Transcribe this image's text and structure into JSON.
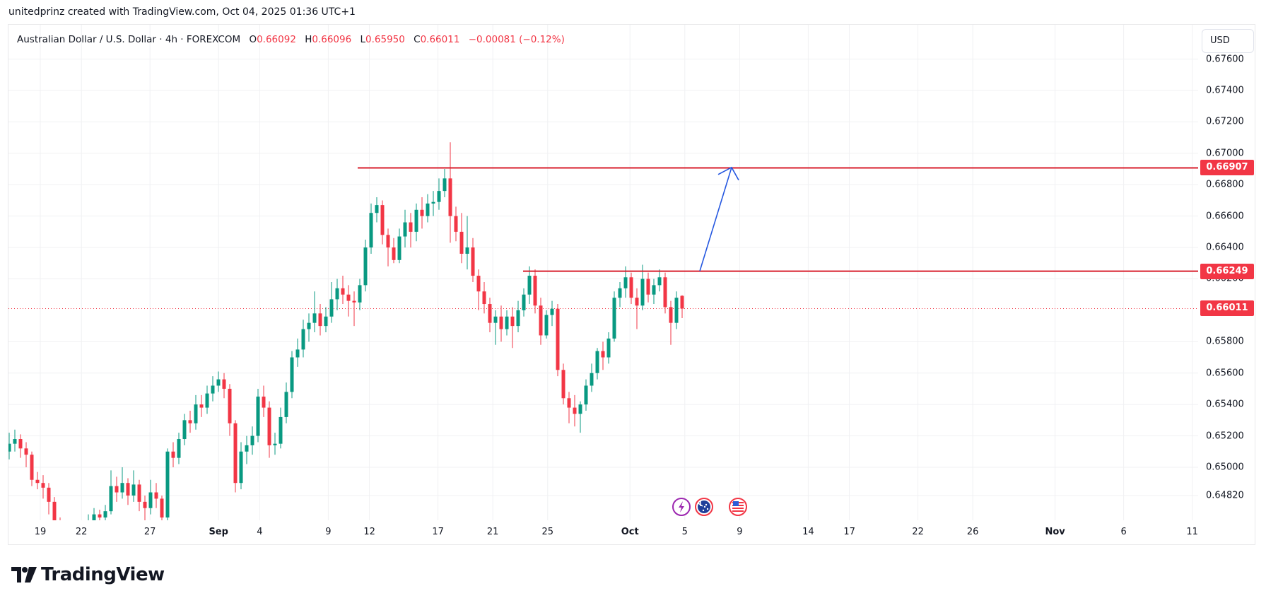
{
  "credit": "unitedprinz created with TradingView.com, Oct 04, 2025 01:36 UTC+1",
  "legend": {
    "symbol": "Australian Dollar / U.S. Dollar · 4h · FOREXCOM",
    "o_label": "O",
    "o": "0.66092",
    "h_label": "H",
    "h": "0.66096",
    "l_label": "L",
    "l": "0.65950",
    "c_label": "C",
    "c": "0.66011",
    "change": "−0.00081 (−0.12%)"
  },
  "currency_button": "USD",
  "logo_text": "TradingView",
  "colors": {
    "up": "#089981",
    "down": "#f23645",
    "level": "#d81f2d",
    "arrow": "#2457e0",
    "grid": "#f0f1f3"
  },
  "chart_data": {
    "type": "candlestick",
    "title": "Australian Dollar / U.S. Dollar · 4h · FOREXCOM",
    "ylim": [
      0.6473,
      0.6773
    ],
    "y_ticks": [
      "0.67600",
      "0.67400",
      "0.67200",
      "0.67000",
      "0.66800",
      "0.66600",
      "0.66400",
      "0.66200",
      "0.65800",
      "0.65600",
      "0.65400",
      "0.65200",
      "0.65000",
      "0.64820"
    ],
    "x_ticks": [
      {
        "label": "19",
        "bold": false,
        "day": 0
      },
      {
        "label": "22",
        "bold": false,
        "day": 3
      },
      {
        "label": "27",
        "bold": false,
        "day": 8
      },
      {
        "label": "Sep",
        "bold": true,
        "day": 13
      },
      {
        "label": "4",
        "bold": false,
        "day": 16
      },
      {
        "label": "9",
        "bold": false,
        "day": 21
      },
      {
        "label": "12",
        "bold": false,
        "day": 24
      },
      {
        "label": "17",
        "bold": false,
        "day": 29
      },
      {
        "label": "21",
        "bold": false,
        "day": 33
      },
      {
        "label": "25",
        "bold": false,
        "day": 37
      },
      {
        "label": "Oct",
        "bold": true,
        "day": 43
      },
      {
        "label": "5",
        "bold": false,
        "day": 47
      },
      {
        "label": "9",
        "bold": false,
        "day": 51
      },
      {
        "label": "14",
        "bold": false,
        "day": 56
      },
      {
        "label": "17",
        "bold": false,
        "day": 59
      },
      {
        "label": "22",
        "bold": false,
        "day": 64
      },
      {
        "label": "26",
        "bold": false,
        "day": 68
      },
      {
        "label": "Nov",
        "bold": true,
        "day": 74
      },
      {
        "label": "6",
        "bold": false,
        "day": 79
      },
      {
        "label": "11",
        "bold": false,
        "day": 84
      }
    ],
    "levels": [
      {
        "price": 0.66907,
        "label": "0.66907"
      },
      {
        "price": 0.66249,
        "label": "0.66249"
      }
    ],
    "last_price": {
      "price": 0.66011,
      "label": "0.66011"
    },
    "arrow": {
      "from_price": 0.6625,
      "to_price": 0.6691
    },
    "events": [
      "lightning-event",
      "australia-flag-event",
      "us-flag-event"
    ],
    "candles": [
      [
        0.651,
        0.6522,
        0.6505,
        0.6515
      ],
      [
        0.6515,
        0.6524,
        0.651,
        0.6518
      ],
      [
        0.6518,
        0.6521,
        0.6506,
        0.6512
      ],
      [
        0.6512,
        0.6516,
        0.65,
        0.6508
      ],
      [
        0.6508,
        0.651,
        0.6488,
        0.6492
      ],
      [
        0.6492,
        0.6497,
        0.6486,
        0.649
      ],
      [
        0.649,
        0.6495,
        0.648,
        0.6487
      ],
      [
        0.6487,
        0.649,
        0.647,
        0.6478
      ],
      [
        0.6478,
        0.6481,
        0.646,
        0.6465
      ],
      [
        0.6465,
        0.6468,
        0.6452,
        0.6458
      ],
      [
        0.6458,
        0.6462,
        0.645,
        0.6455
      ],
      [
        0.6455,
        0.6458,
        0.6446,
        0.6452
      ],
      [
        0.6452,
        0.6462,
        0.6448,
        0.6458
      ],
      [
        0.6458,
        0.6466,
        0.6454,
        0.6462
      ],
      [
        0.6462,
        0.647,
        0.6458,
        0.6466
      ],
      [
        0.6466,
        0.6474,
        0.6462,
        0.647
      ],
      [
        0.647,
        0.6473,
        0.6462,
        0.6468
      ],
      [
        0.6468,
        0.6476,
        0.6465,
        0.6472
      ],
      [
        0.6472,
        0.6498,
        0.647,
        0.6488
      ],
      [
        0.6488,
        0.6494,
        0.6478,
        0.6484
      ],
      [
        0.6484,
        0.65,
        0.648,
        0.649
      ],
      [
        0.649,
        0.6493,
        0.6476,
        0.6482
      ],
      [
        0.6482,
        0.6498,
        0.6478,
        0.6489
      ],
      [
        0.6489,
        0.6492,
        0.6472,
        0.6478
      ],
      [
        0.6478,
        0.6482,
        0.6466,
        0.6474
      ],
      [
        0.6474,
        0.6492,
        0.647,
        0.6484
      ],
      [
        0.6484,
        0.649,
        0.6474,
        0.648
      ],
      [
        0.648,
        0.6482,
        0.6462,
        0.6468
      ],
      [
        0.6468,
        0.6512,
        0.6466,
        0.651
      ],
      [
        0.651,
        0.6516,
        0.65,
        0.6506
      ],
      [
        0.6506,
        0.6522,
        0.6502,
        0.6518
      ],
      [
        0.6518,
        0.6534,
        0.6514,
        0.653
      ],
      [
        0.653,
        0.6536,
        0.6522,
        0.6528
      ],
      [
        0.6528,
        0.6546,
        0.6524,
        0.654
      ],
      [
        0.654,
        0.6546,
        0.6532,
        0.6538
      ],
      [
        0.6538,
        0.6552,
        0.6534,
        0.6547
      ],
      [
        0.6547,
        0.6558,
        0.6542,
        0.6552
      ],
      [
        0.6552,
        0.6561,
        0.6548,
        0.6556
      ],
      [
        0.6556,
        0.656,
        0.6544,
        0.655
      ],
      [
        0.655,
        0.6553,
        0.652,
        0.6528
      ],
      [
        0.6528,
        0.653,
        0.6484,
        0.649
      ],
      [
        0.649,
        0.6516,
        0.6486,
        0.651
      ],
      [
        0.651,
        0.652,
        0.6502,
        0.6514
      ],
      [
        0.6514,
        0.6526,
        0.6508,
        0.652
      ],
      [
        0.652,
        0.655,
        0.6516,
        0.6545
      ],
      [
        0.6545,
        0.6552,
        0.6532,
        0.6538
      ],
      [
        0.6538,
        0.6542,
        0.6506,
        0.6514
      ],
      [
        0.6514,
        0.6522,
        0.6508,
        0.6515
      ],
      [
        0.6515,
        0.6538,
        0.6512,
        0.6532
      ],
      [
        0.6532,
        0.6554,
        0.6528,
        0.6548
      ],
      [
        0.6548,
        0.6574,
        0.6544,
        0.657
      ],
      [
        0.657,
        0.6582,
        0.6564,
        0.6575
      ],
      [
        0.6575,
        0.6594,
        0.657,
        0.6588
      ],
      [
        0.6588,
        0.6598,
        0.658,
        0.6592
      ],
      [
        0.6592,
        0.6612,
        0.6586,
        0.6598
      ],
      [
        0.6598,
        0.6604,
        0.6584,
        0.659
      ],
      [
        0.659,
        0.6602,
        0.6586,
        0.6596
      ],
      [
        0.6596,
        0.6618,
        0.6592,
        0.6607
      ],
      [
        0.6607,
        0.662,
        0.66,
        0.6614
      ],
      [
        0.6614,
        0.6622,
        0.6604,
        0.661
      ],
      [
        0.661,
        0.6616,
        0.6596,
        0.6606
      ],
      [
        0.6606,
        0.6612,
        0.659,
        0.6605
      ],
      [
        0.6605,
        0.662,
        0.66,
        0.6616
      ],
      [
        0.6616,
        0.6645,
        0.6612,
        0.664
      ],
      [
        0.664,
        0.6668,
        0.6636,
        0.6662
      ],
      [
        0.6662,
        0.6672,
        0.6656,
        0.6667
      ],
      [
        0.6667,
        0.667,
        0.6642,
        0.6648
      ],
      [
        0.6648,
        0.6652,
        0.6628,
        0.664
      ],
      [
        0.664,
        0.6646,
        0.663,
        0.6632
      ],
      [
        0.6632,
        0.6652,
        0.663,
        0.6647
      ],
      [
        0.6647,
        0.6664,
        0.664,
        0.6656
      ],
      [
        0.6656,
        0.6662,
        0.664,
        0.665
      ],
      [
        0.665,
        0.6668,
        0.6644,
        0.6664
      ],
      [
        0.6664,
        0.6672,
        0.6652,
        0.666
      ],
      [
        0.666,
        0.6674,
        0.6656,
        0.6668
      ],
      [
        0.6668,
        0.6676,
        0.666,
        0.6669
      ],
      [
        0.6669,
        0.6684,
        0.6664,
        0.6676
      ],
      [
        0.6676,
        0.669,
        0.6672,
        0.6684
      ],
      [
        0.6684,
        0.6707,
        0.6643,
        0.666
      ],
      [
        0.666,
        0.6666,
        0.6644,
        0.665
      ],
      [
        0.665,
        0.6662,
        0.663,
        0.6636
      ],
      [
        0.6636,
        0.666,
        0.6626,
        0.664
      ],
      [
        0.664,
        0.6646,
        0.6618,
        0.6622
      ],
      [
        0.6622,
        0.6626,
        0.66,
        0.6612
      ],
      [
        0.6612,
        0.6618,
        0.6598,
        0.6604
      ],
      [
        0.6604,
        0.6608,
        0.6586,
        0.6592
      ],
      [
        0.6592,
        0.66,
        0.6578,
        0.6596
      ],
      [
        0.6596,
        0.6603,
        0.658,
        0.6588
      ],
      [
        0.6588,
        0.66,
        0.6584,
        0.6596
      ],
      [
        0.6596,
        0.6602,
        0.6576,
        0.659
      ],
      [
        0.659,
        0.6606,
        0.6586,
        0.66
      ],
      [
        0.66,
        0.6614,
        0.6596,
        0.661
      ],
      [
        0.661,
        0.6628,
        0.6604,
        0.6622
      ],
      [
        0.6622,
        0.6626,
        0.6598,
        0.6603
      ],
      [
        0.6603,
        0.6608,
        0.6578,
        0.6584
      ],
      [
        0.6584,
        0.66,
        0.6582,
        0.6597
      ],
      [
        0.6597,
        0.6606,
        0.659,
        0.6601
      ],
      [
        0.6601,
        0.6604,
        0.6558,
        0.6562
      ],
      [
        0.6562,
        0.6566,
        0.654,
        0.6544
      ],
      [
        0.6544,
        0.6548,
        0.6528,
        0.6538
      ],
      [
        0.6538,
        0.6546,
        0.6526,
        0.6534
      ],
      [
        0.6534,
        0.6542,
        0.6522,
        0.654
      ],
      [
        0.654,
        0.6556,
        0.6536,
        0.6552
      ],
      [
        0.6552,
        0.6566,
        0.6548,
        0.656
      ],
      [
        0.656,
        0.6576,
        0.6556,
        0.6574
      ],
      [
        0.6574,
        0.658,
        0.6562,
        0.657
      ],
      [
        0.657,
        0.6586,
        0.6566,
        0.6582
      ],
      [
        0.6582,
        0.6612,
        0.658,
        0.6608
      ],
      [
        0.6608,
        0.6618,
        0.6602,
        0.6614
      ],
      [
        0.6614,
        0.6628,
        0.6608,
        0.6621
      ],
      [
        0.6621,
        0.6624,
        0.6604,
        0.6608
      ],
      [
        0.6608,
        0.6614,
        0.6588,
        0.6603
      ],
      [
        0.6603,
        0.6629,
        0.66,
        0.662
      ],
      [
        0.662,
        0.6624,
        0.6605,
        0.661
      ],
      [
        0.661,
        0.662,
        0.6604,
        0.6616
      ],
      [
        0.6616,
        0.6626,
        0.6612,
        0.6621
      ],
      [
        0.6621,
        0.6624,
        0.6598,
        0.6602
      ],
      [
        0.6602,
        0.6606,
        0.6578,
        0.6592
      ],
      [
        0.6592,
        0.6612,
        0.6588,
        0.6608
      ],
      [
        0.66092,
        0.66096,
        0.6595,
        0.66011
      ]
    ]
  }
}
